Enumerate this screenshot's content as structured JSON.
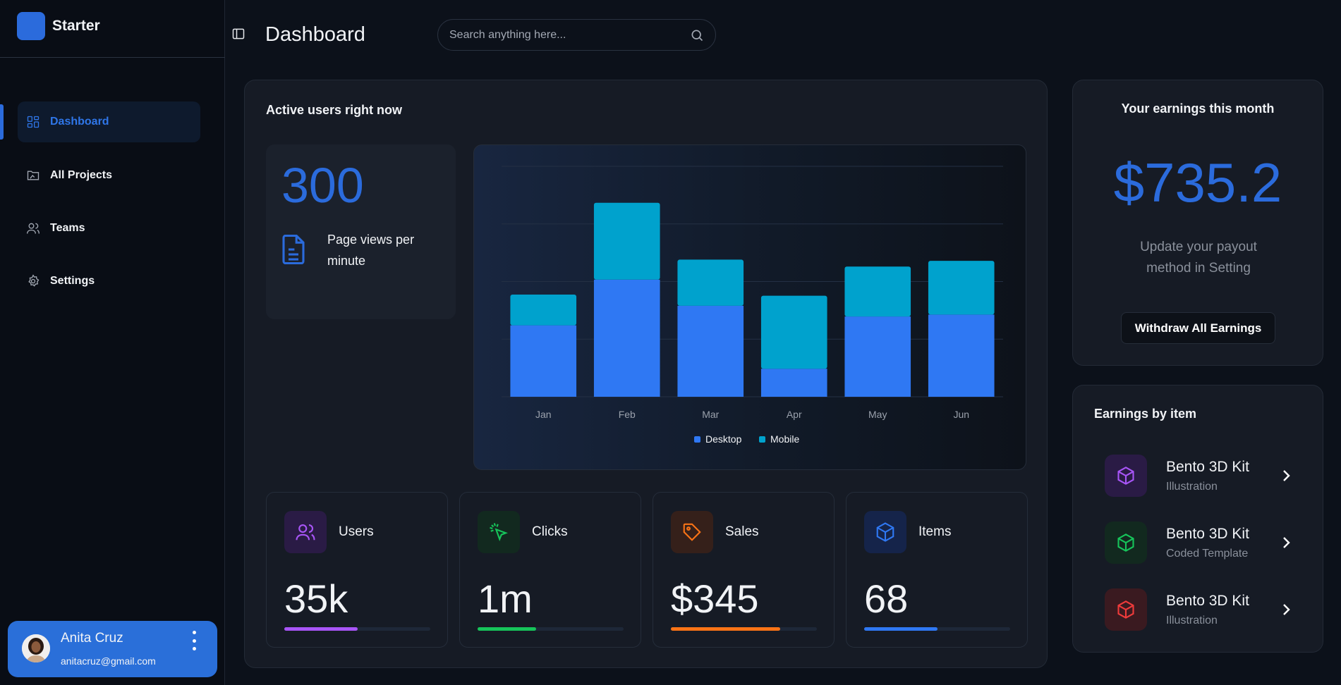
{
  "app": {
    "brand": "Starter"
  },
  "sidebar": {
    "items": [
      {
        "label": "Dashboard",
        "icon": "dashboard-grid-icon",
        "active": true
      },
      {
        "label": "All Projects",
        "icon": "folder-icon",
        "active": false
      },
      {
        "label": "Teams",
        "icon": "users-icon",
        "active": false
      },
      {
        "label": "Settings",
        "icon": "gear-icon",
        "active": false
      }
    ],
    "user": {
      "name": "Anita Cruz",
      "email": "anitacruz@gmail.com"
    }
  },
  "header": {
    "title": "Dashboard",
    "search_placeholder": "Search anything here..."
  },
  "active_users": {
    "title": "Active users right now",
    "value": "300",
    "caption": "Page views per minute"
  },
  "chart_data": {
    "type": "bar",
    "stacked": true,
    "categories": [
      "Jan",
      "Feb",
      "Mar",
      "Apr",
      "May",
      "Jun"
    ],
    "series": [
      {
        "name": "Desktop",
        "values": [
          186,
          305,
          237,
          73,
          209,
          214
        ],
        "color": "#2f78f3"
      },
      {
        "name": "Mobile",
        "values": [
          80,
          200,
          120,
          190,
          130,
          140
        ],
        "color": "#00a2cd"
      }
    ],
    "ylim": [
      0,
      600
    ],
    "grid": true,
    "legend": "bottom"
  },
  "stats": [
    {
      "label": "Users",
      "value": "35k",
      "progress": 0.5,
      "color": "#a855f7",
      "bg": "#2a1b45",
      "icon": "users-icon"
    },
    {
      "label": "Clicks",
      "value": "1m",
      "progress": 0.4,
      "color": "#16c45a",
      "bg": "#12291f",
      "icon": "cursor-click-icon"
    },
    {
      "label": "Sales",
      "value": "$345",
      "progress": 0.75,
      "color": "#f97316",
      "bg": "#35201a",
      "icon": "tag-icon"
    },
    {
      "label": "Items",
      "value": "68",
      "progress": 0.5,
      "color": "#2f78f3",
      "bg": "#15244a",
      "icon": "box-icon"
    }
  ],
  "earnings": {
    "title": "Your earnings this month",
    "value": "$735.2",
    "subtitle": "Update your payout method in Setting",
    "button": "Withdraw All Earnings"
  },
  "earnings_by_item": {
    "title": "Earnings by item",
    "items": [
      {
        "name": "Bento 3D Kit",
        "category": "Illustration",
        "color": "#a855f7",
        "bg": "#2a1b45"
      },
      {
        "name": "Bento 3D Kit",
        "category": "Coded Template",
        "color": "#16c45a",
        "bg": "#12291f"
      },
      {
        "name": "Bento 3D Kit",
        "category": "Illustration",
        "color": "#ef3b3b",
        "bg": "#3a1a20"
      }
    ]
  }
}
